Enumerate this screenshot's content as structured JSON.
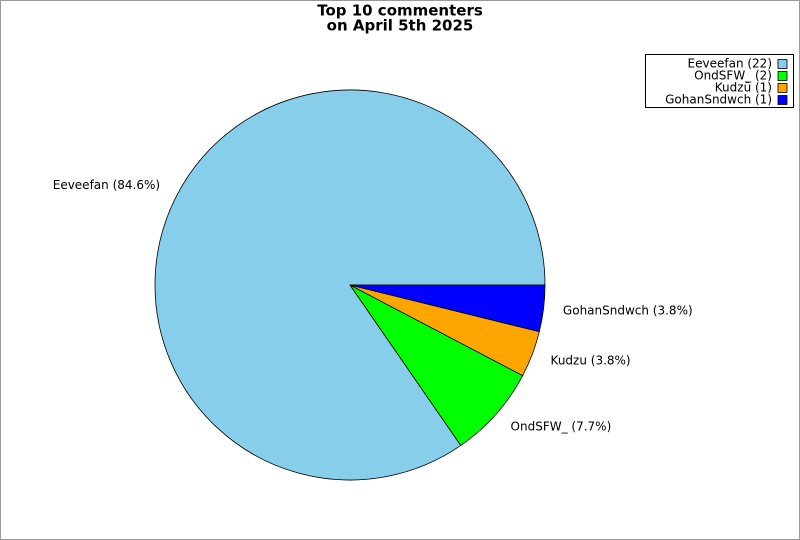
{
  "chart_data": {
    "type": "pie",
    "title": "Top 10 commenters",
    "subtitle": "on April 5th 2025",
    "categories": [
      "Eeveefan",
      "OndSFW_",
      "Kudzū",
      "GohanSndwch"
    ],
    "values": [
      22,
      2,
      1,
      1
    ],
    "colors": [
      "#87ceeb",
      "#00ff00",
      "#ffa500",
      "#0000ff"
    ],
    "legend_labels": [
      "Eeveefan (22)",
      "OndSFW_ (2)",
      "Kudzū (1)",
      "GohanSndwch (1)"
    ],
    "slice_labels": [
      "Eeveefan (84.6%)",
      "OndSFW_ (7.7%)",
      "Kudzu (3.8%)",
      "GohanSndwch (3.8%)"
    ],
    "legend_position": "upper right"
  }
}
